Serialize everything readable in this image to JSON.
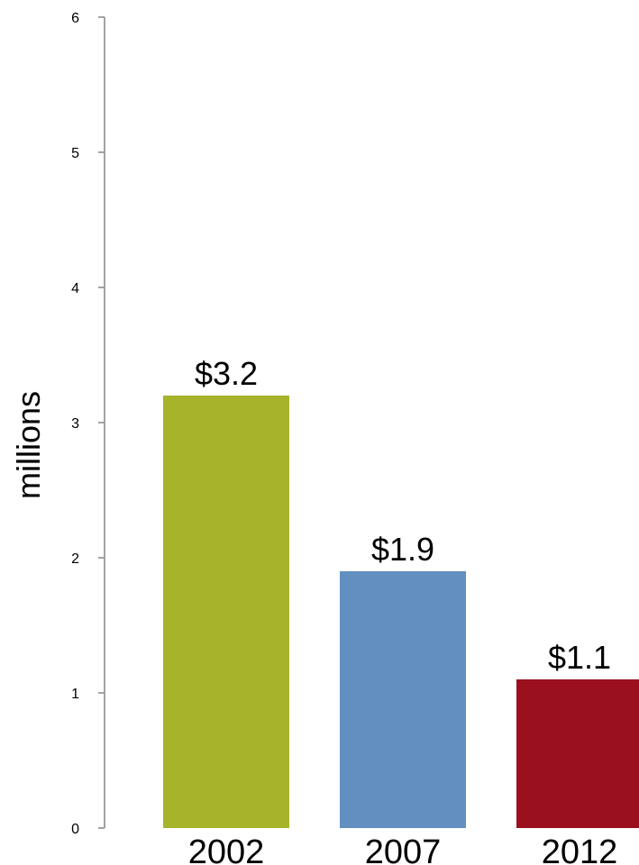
{
  "chart_data": {
    "type": "bar",
    "categories": [
      "2002",
      "2007",
      "2012"
    ],
    "values": [
      3.2,
      1.9,
      1.1
    ],
    "data_labels": [
      "$3.2",
      "$1.9",
      "$1.1"
    ],
    "bar_colors": [
      "#a8b32c",
      "#628fc0",
      "#9a101f"
    ],
    "title": "",
    "xlabel": "",
    "ylabel": "millions",
    "ylim": [
      0,
      6
    ],
    "yticks": [
      0,
      1,
      2,
      3,
      4,
      5,
      6
    ],
    "grid": false,
    "legend": "none",
    "axis_color": "#868686"
  }
}
